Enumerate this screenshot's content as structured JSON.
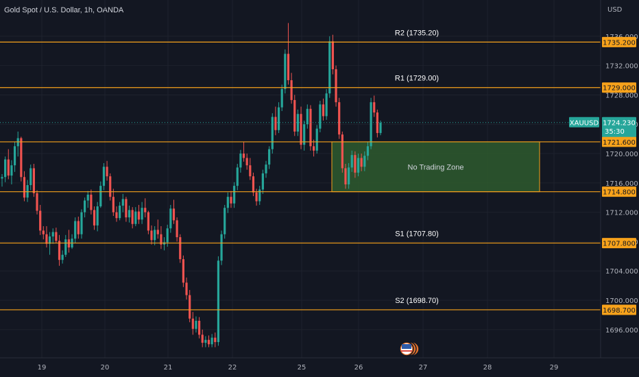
{
  "header": {
    "title": "Gold Spot / U.S. Dollar, 1h, OANDA",
    "currency": "USD"
  },
  "colors": {
    "background": "#131722",
    "grid": "#1e222d",
    "level": "#f7a21b",
    "up": "#26a69a",
    "down": "#ef5350",
    "zone_fill": "#2e5b2e",
    "current": "#26a69a"
  },
  "chart_data": {
    "type": "candlestick",
    "symbol": "XAUUSD",
    "y_axis": {
      "unit": "USD",
      "ylim": [
        1693.6,
        1738.4
      ],
      "ticks": [
        "1736.000",
        "1732.000",
        "1728.000",
        "1724.000",
        "1720.000",
        "1716.000",
        "1712.000",
        "1708.000",
        "1704.000",
        "1700.000",
        "1696.000"
      ]
    },
    "x_axis": {
      "ticks": [
        "19",
        "20",
        "21",
        "22",
        "25",
        "26",
        "27",
        "28",
        "29"
      ]
    },
    "levels": [
      {
        "name": "R2",
        "value": 1735.2,
        "label": "R2 (1735.20)",
        "tag": "1735.200"
      },
      {
        "name": "R1",
        "value": 1729.0,
        "label": "R1 (1729.00)",
        "tag": "1729.000"
      },
      {
        "name": "zone-top",
        "value": 1721.6,
        "label": "",
        "tag": "1721.600"
      },
      {
        "name": "zone-bottom",
        "value": 1714.8,
        "label": "",
        "tag": "1714.800"
      },
      {
        "name": "S1",
        "value": 1707.8,
        "label": "S1 (1707.80)",
        "tag": "1707.800"
      },
      {
        "name": "S2",
        "value": 1698.7,
        "label": "S2 (1698.70)",
        "tag": "1698.700"
      }
    ],
    "zone": {
      "label": "No Trading Zone",
      "top": 1721.6,
      "bottom": 1714.8
    },
    "current_price": {
      "value": 1724.23,
      "label": "1724.230",
      "countdown": "35:30",
      "symbol": "XAUUSD"
    },
    "candles_ohlc": [
      [
        1716.6,
        1717.2,
        1715.5,
        1716.8
      ],
      [
        1716.8,
        1719.6,
        1716.1,
        1719.2
      ],
      [
        1719.2,
        1720.6,
        1716.5,
        1717.0
      ],
      [
        1717.0,
        1719.1,
        1715.8,
        1718.4
      ],
      [
        1718.4,
        1721.6,
        1717.5,
        1721.0
      ],
      [
        1721.0,
        1723.0,
        1719.6,
        1722.1
      ],
      [
        1722.1,
        1722.3,
        1716.2,
        1716.8
      ],
      [
        1716.8,
        1717.6,
        1713.5,
        1714.0
      ],
      [
        1714.0,
        1716.4,
        1713.4,
        1715.7
      ],
      [
        1715.7,
        1718.5,
        1715.0,
        1718.0
      ],
      [
        1718.0,
        1718.6,
        1714.1,
        1714.6
      ],
      [
        1714.6,
        1715.0,
        1711.7,
        1712.2
      ],
      [
        1712.2,
        1713.0,
        1708.9,
        1709.5
      ],
      [
        1709.5,
        1710.1,
        1708.3,
        1709.0
      ],
      [
        1709.0,
        1710.1,
        1707.2,
        1707.7
      ],
      [
        1707.7,
        1709.3,
        1706.2,
        1708.7
      ],
      [
        1708.7,
        1709.8,
        1707.7,
        1709.3
      ],
      [
        1709.3,
        1709.9,
        1707.8,
        1708.1
      ],
      [
        1708.1,
        1708.9,
        1704.7,
        1705.5
      ],
      [
        1705.5,
        1706.8,
        1705.0,
        1706.2
      ],
      [
        1706.2,
        1708.9,
        1705.9,
        1708.3
      ],
      [
        1708.3,
        1709.6,
        1706.5,
        1707.2
      ],
      [
        1707.2,
        1709.0,
        1707.0,
        1708.4
      ],
      [
        1708.4,
        1711.3,
        1707.8,
        1710.8
      ],
      [
        1710.8,
        1711.4,
        1708.4,
        1709.0
      ],
      [
        1709.0,
        1712.4,
        1708.4,
        1712.0
      ],
      [
        1712.0,
        1714.0,
        1711.3,
        1713.6
      ],
      [
        1713.6,
        1714.9,
        1712.6,
        1714.4
      ],
      [
        1714.4,
        1715.1,
        1711.7,
        1712.3
      ],
      [
        1712.3,
        1712.8,
        1709.6,
        1710.2
      ],
      [
        1710.2,
        1713.4,
        1709.4,
        1712.8
      ],
      [
        1712.8,
        1716.2,
        1712.6,
        1715.6
      ],
      [
        1715.6,
        1718.7,
        1715.0,
        1718.2
      ],
      [
        1718.2,
        1719.0,
        1716.3,
        1716.9
      ],
      [
        1716.9,
        1717.3,
        1713.6,
        1714.1
      ],
      [
        1714.1,
        1715.2,
        1711.5,
        1712.0
      ],
      [
        1712.0,
        1712.8,
        1710.7,
        1711.2
      ],
      [
        1711.2,
        1713.4,
        1710.9,
        1712.9
      ],
      [
        1712.9,
        1714.5,
        1712.0,
        1713.8
      ],
      [
        1713.8,
        1714.1,
        1710.7,
        1711.3
      ],
      [
        1711.3,
        1712.9,
        1710.6,
        1712.3
      ],
      [
        1712.3,
        1712.7,
        1709.8,
        1710.4
      ],
      [
        1710.4,
        1712.7,
        1710.1,
        1712.1
      ],
      [
        1712.1,
        1713.0,
        1710.4,
        1711.0
      ],
      [
        1711.0,
        1713.4,
        1710.4,
        1712.6
      ],
      [
        1712.6,
        1713.9,
        1711.3,
        1712.0
      ],
      [
        1712.0,
        1712.2,
        1709.0,
        1709.5
      ],
      [
        1709.5,
        1710.2,
        1707.6,
        1708.2
      ],
      [
        1708.2,
        1710.1,
        1707.5,
        1709.6
      ],
      [
        1709.6,
        1711.0,
        1708.4,
        1709.0
      ],
      [
        1709.0,
        1710.1,
        1707.0,
        1707.6
      ],
      [
        1707.6,
        1708.6,
        1706.8,
        1707.9
      ],
      [
        1707.9,
        1710.3,
        1707.3,
        1709.8
      ],
      [
        1709.8,
        1713.0,
        1709.2,
        1712.5
      ],
      [
        1712.5,
        1713.7,
        1710.4,
        1710.9
      ],
      [
        1710.9,
        1711.3,
        1708.0,
        1708.6
      ],
      [
        1708.6,
        1709.0,
        1705.1,
        1705.6
      ],
      [
        1705.6,
        1706.1,
        1701.8,
        1702.4
      ],
      [
        1702.4,
        1703.1,
        1700.1,
        1700.7
      ],
      [
        1700.7,
        1701.4,
        1697.0,
        1697.5
      ],
      [
        1697.5,
        1698.4,
        1695.3,
        1696.1
      ],
      [
        1696.1,
        1697.8,
        1695.6,
        1697.2
      ],
      [
        1697.2,
        1697.7,
        1694.8,
        1695.3
      ],
      [
        1695.3,
        1696.0,
        1693.6,
        1694.2
      ],
      [
        1694.2,
        1695.1,
        1693.6,
        1694.6
      ],
      [
        1694.6,
        1695.2,
        1693.6,
        1694.0
      ],
      [
        1694.0,
        1695.4,
        1693.6,
        1694.9
      ],
      [
        1694.9,
        1695.6,
        1693.6,
        1694.3
      ],
      [
        1694.3,
        1706.0,
        1693.8,
        1705.4
      ],
      [
        1705.4,
        1709.5,
        1704.8,
        1709.0
      ],
      [
        1709.0,
        1713.0,
        1708.4,
        1712.6
      ],
      [
        1712.6,
        1714.7,
        1711.9,
        1714.1
      ],
      [
        1714.1,
        1714.9,
        1712.6,
        1713.2
      ],
      [
        1713.2,
        1716.1,
        1712.6,
        1715.6
      ],
      [
        1715.6,
        1718.6,
        1715.0,
        1718.1
      ],
      [
        1718.1,
        1720.5,
        1717.4,
        1720.0
      ],
      [
        1720.0,
        1721.6,
        1718.9,
        1719.4
      ],
      [
        1719.4,
        1720.0,
        1717.8,
        1718.4
      ],
      [
        1718.4,
        1719.4,
        1716.4,
        1716.9
      ],
      [
        1716.9,
        1717.4,
        1714.2,
        1714.7
      ],
      [
        1714.7,
        1715.2,
        1712.9,
        1713.5
      ],
      [
        1713.5,
        1715.6,
        1713.0,
        1715.1
      ],
      [
        1715.1,
        1717.8,
        1714.5,
        1717.3
      ],
      [
        1717.3,
        1719.0,
        1716.7,
        1718.5
      ],
      [
        1718.5,
        1721.0,
        1717.9,
        1720.6
      ],
      [
        1720.6,
        1725.5,
        1720.0,
        1725.0
      ],
      [
        1725.0,
        1726.4,
        1722.5,
        1723.2
      ],
      [
        1723.2,
        1727.0,
        1722.8,
        1726.3
      ],
      [
        1726.3,
        1729.4,
        1725.8,
        1728.8
      ],
      [
        1728.8,
        1734.2,
        1728.2,
        1733.6
      ],
      [
        1733.6,
        1737.8,
        1729.4,
        1730.0
      ],
      [
        1730.0,
        1731.0,
        1726.8,
        1727.3
      ],
      [
        1727.3,
        1728.0,
        1722.4,
        1723.0
      ],
      [
        1723.0,
        1726.0,
        1722.4,
        1725.4
      ],
      [
        1725.4,
        1726.4,
        1720.6,
        1721.2
      ],
      [
        1721.2,
        1724.5,
        1720.4,
        1724.0
      ],
      [
        1724.0,
        1726.7,
        1723.4,
        1726.1
      ],
      [
        1726.1,
        1726.6,
        1720.4,
        1721.0
      ],
      [
        1721.0,
        1721.9,
        1719.6,
        1720.4
      ],
      [
        1720.4,
        1723.9,
        1720.0,
        1723.4
      ],
      [
        1723.4,
        1727.2,
        1722.9,
        1726.7
      ],
      [
        1726.7,
        1727.5,
        1724.5,
        1725.1
      ],
      [
        1725.1,
        1728.8,
        1724.6,
        1728.2
      ],
      [
        1728.2,
        1736.0,
        1727.6,
        1735.3
      ],
      [
        1735.3,
        1736.2,
        1730.8,
        1731.5
      ],
      [
        1731.5,
        1732.0,
        1726.4,
        1727.0
      ],
      [
        1727.0,
        1727.6,
        1722.0,
        1722.6
      ],
      [
        1722.6,
        1723.0,
        1717.4,
        1718.0
      ],
      [
        1718.0,
        1718.6,
        1715.2,
        1715.8
      ],
      [
        1715.8,
        1718.7,
        1715.2,
        1718.1
      ],
      [
        1718.1,
        1720.4,
        1717.5,
        1719.8
      ],
      [
        1719.8,
        1720.3,
        1716.7,
        1717.4
      ],
      [
        1717.4,
        1720.0,
        1716.9,
        1719.4
      ],
      [
        1719.4,
        1720.0,
        1717.6,
        1718.2
      ],
      [
        1718.2,
        1720.3,
        1717.6,
        1719.7
      ],
      [
        1719.7,
        1721.6,
        1719.1,
        1721.0
      ],
      [
        1721.0,
        1727.6,
        1720.6,
        1727.0
      ],
      [
        1727.0,
        1727.9,
        1725.0,
        1725.6
      ],
      [
        1725.6,
        1726.0,
        1722.2,
        1722.8
      ],
      [
        1722.8,
        1724.5,
        1722.5,
        1724.2
      ]
    ]
  }
}
